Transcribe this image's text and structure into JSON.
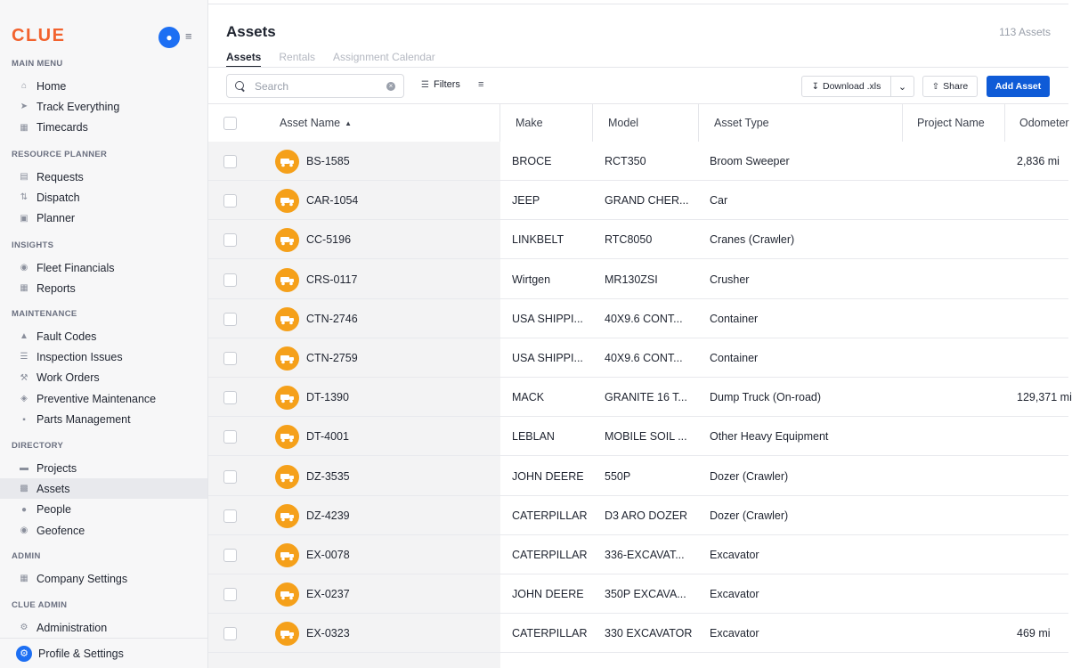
{
  "sidebar": {
    "logo": "CLUE",
    "sections": [
      {
        "label": "MAIN MENU",
        "items": [
          {
            "label": "Home",
            "icon": "home-icon"
          },
          {
            "label": "Track Everything",
            "icon": "navigation-arrow-icon"
          },
          {
            "label": "Timecards",
            "icon": "timecard-icon"
          }
        ]
      },
      {
        "label": "RESOURCE PLANNER",
        "items": [
          {
            "label": "Requests",
            "icon": "requests-icon"
          },
          {
            "label": "Dispatch",
            "icon": "dispatch-icon"
          },
          {
            "label": "Planner",
            "icon": "calendar-icon"
          }
        ]
      },
      {
        "label": "INSIGHTS",
        "items": [
          {
            "label": "Fleet Financials",
            "icon": "financials-icon"
          },
          {
            "label": "Reports",
            "icon": "reports-icon"
          }
        ]
      },
      {
        "label": "MAINTENANCE",
        "items": [
          {
            "label": "Fault Codes",
            "icon": "warning-triangle-icon"
          },
          {
            "label": "Inspection Issues",
            "icon": "inspection-icon"
          },
          {
            "label": "Work Orders",
            "icon": "wrench-icon"
          },
          {
            "label": "Preventive Maintenance",
            "icon": "maintenance-icon"
          },
          {
            "label": "Parts Management",
            "icon": "parts-box-icon"
          }
        ]
      },
      {
        "label": "DIRECTORY",
        "items": [
          {
            "label": "Projects",
            "icon": "folder-icon"
          },
          {
            "label": "Assets",
            "icon": "truck-icon",
            "active": true
          },
          {
            "label": "People",
            "icon": "people-icon"
          },
          {
            "label": "Geofence",
            "icon": "location-pin-icon"
          }
        ]
      },
      {
        "label": "ADMIN",
        "items": [
          {
            "label": "Company Settings",
            "icon": "company-settings-icon"
          }
        ]
      },
      {
        "label": "CLUE ADMIN",
        "items": [
          {
            "label": "Administration",
            "icon": "gear-icon"
          }
        ]
      }
    ],
    "profile_label": "Profile & Settings"
  },
  "header": {
    "title": "Assets",
    "count": "113 Assets",
    "tabs": [
      {
        "label": "Assets",
        "active": true
      },
      {
        "label": "Rentals",
        "active": false
      },
      {
        "label": "Assignment Calendar",
        "active": false
      }
    ]
  },
  "toolbar": {
    "search_placeholder": "Search",
    "filters_label": "Filters",
    "download_label": "Download .xls",
    "share_label": "Share",
    "add_label": "Add Asset"
  },
  "table": {
    "columns": [
      "Asset Name",
      "Make",
      "Model",
      "Asset Type",
      "Project Name",
      "Odometer"
    ],
    "rows": [
      {
        "name": "BS-1585",
        "make": "BROCE",
        "model": "RCT350",
        "type": "Broom Sweeper",
        "project": "",
        "odometer": "2,836 mi",
        "icon": "sweeper-icon"
      },
      {
        "name": "CAR-1054",
        "make": "JEEP",
        "model": "GRAND CHER...",
        "type": "Car",
        "project": "",
        "odometer": "",
        "icon": "car-icon"
      },
      {
        "name": "CC-5196",
        "make": "LINKBELT",
        "model": "RTC8050",
        "type": "Cranes (Crawler)",
        "project": "",
        "odometer": "",
        "icon": "crane-icon"
      },
      {
        "name": "CRS-0117",
        "make": "Wirtgen",
        "model": "MR130ZSI",
        "type": "Crusher",
        "project": "",
        "odometer": "",
        "icon": "crusher-icon"
      },
      {
        "name": "CTN-2746",
        "make": "USA SHIPPI...",
        "model": "40X9.6 CONT...",
        "type": "Container",
        "project": "",
        "odometer": "",
        "icon": "container-icon"
      },
      {
        "name": "CTN-2759",
        "make": "USA SHIPPI...",
        "model": "40X9.6 CONT...",
        "type": "Container",
        "project": "",
        "odometer": "",
        "icon": "container-icon"
      },
      {
        "name": "DT-1390",
        "make": "MACK",
        "model": "GRANITE 16 T...",
        "type": "Dump Truck (On-road)",
        "project": "",
        "odometer": "129,371 mi",
        "icon": "dump-truck-icon"
      },
      {
        "name": "DT-4001",
        "make": "LEBLAN",
        "model": "MOBILE SOIL ...",
        "type": "Other Heavy Equipment",
        "project": "",
        "odometer": "",
        "icon": "equipment-icon"
      },
      {
        "name": "DZ-3535",
        "make": "JOHN DEERE",
        "model": "550P",
        "type": "Dozer (Crawler)",
        "project": "",
        "odometer": "",
        "icon": "dozer-icon"
      },
      {
        "name": "DZ-4239",
        "make": "CATERPILLAR",
        "model": "D3 ARO DOZER",
        "type": "Dozer (Crawler)",
        "project": "",
        "odometer": "",
        "icon": "dozer-icon"
      },
      {
        "name": "EX-0078",
        "make": "CATERPILLAR",
        "model": "336-EXCAVAT...",
        "type": "Excavator",
        "project": "",
        "odometer": "",
        "icon": "excavator-icon"
      },
      {
        "name": "EX-0237",
        "make": "JOHN DEERE",
        "model": "350P EXCAVA...",
        "type": "Excavator",
        "project": "",
        "odometer": "",
        "icon": "excavator-icon"
      },
      {
        "name": "EX-0323",
        "make": "CATERPILLAR",
        "model": "330 EXCAVATOR",
        "type": "Excavator",
        "project": "",
        "odometer": "469 mi",
        "icon": "excavator-icon"
      }
    ]
  },
  "colors": {
    "brand": "#f2622e",
    "accent": "#0f5bd7",
    "asset_badge": "#f5a01a"
  }
}
